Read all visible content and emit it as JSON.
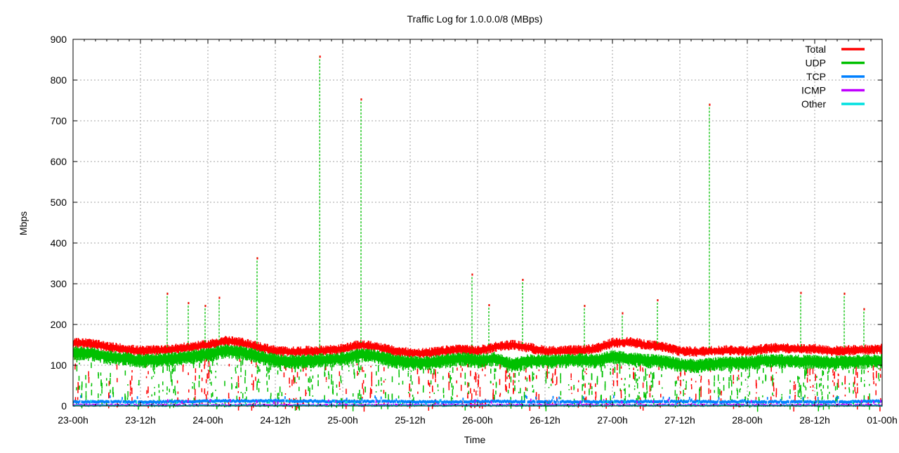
{
  "chart_data": {
    "type": "scatter",
    "title": "Traffic Log for 1.0.0.0/8 (MBps)",
    "xlabel": "Time",
    "ylabel": "Mbps",
    "ylim": [
      0,
      900
    ],
    "yticks": [
      "0",
      "100",
      "200",
      "300",
      "400",
      "500",
      "600",
      "700",
      "800",
      "900"
    ],
    "xlim_hours": [
      0,
      144
    ],
    "xticks": [
      "23-00h",
      "23-12h",
      "24-00h",
      "24-12h",
      "25-00h",
      "25-12h",
      "26-00h",
      "26-12h",
      "27-00h",
      "27-12h",
      "28-00h",
      "28-12h",
      "01-00h"
    ],
    "grid": true,
    "legend_position": "top-right",
    "x_hours": [
      0,
      3,
      6,
      9,
      12,
      15,
      18,
      21,
      24,
      27,
      30,
      33,
      36,
      39,
      42,
      45,
      48,
      51,
      54,
      57,
      60,
      63,
      66,
      69,
      72,
      75,
      78,
      81,
      84,
      87,
      90,
      93,
      96,
      99,
      102,
      105,
      108,
      111,
      114,
      117,
      120,
      123,
      126,
      129,
      132,
      135,
      138,
      141,
      144
    ],
    "series": [
      {
        "name": "Total",
        "color": "#ff0000",
        "values": [
          160,
          158,
          150,
          145,
          140,
          142,
          145,
          150,
          155,
          165,
          160,
          150,
          140,
          138,
          140,
          142,
          145,
          155,
          150,
          140,
          135,
          135,
          140,
          145,
          140,
          150,
          155,
          148,
          140,
          140,
          142,
          145,
          160,
          162,
          155,
          150,
          140,
          138,
          140,
          142,
          140,
          145,
          148,
          145,
          145,
          140,
          142,
          143,
          145
        ]
      },
      {
        "name": "UDP",
        "color": "#00c000",
        "values": [
          140,
          138,
          130,
          125,
          120,
          122,
          125,
          130,
          135,
          145,
          140,
          130,
          120,
          118,
          120,
          122,
          125,
          135,
          130,
          120,
          115,
          115,
          120,
          125,
          120,
          125,
          110,
          120,
          118,
          120,
          122,
          120,
          130,
          125,
          120,
          118,
          110,
          108,
          112,
          115,
          115,
          120,
          120,
          118,
          118,
          115,
          118,
          118,
          120
        ]
      },
      {
        "name": "TCP",
        "color": "#0080ff",
        "values": [
          12,
          12,
          12,
          12,
          12,
          12,
          13,
          13,
          14,
          14,
          14,
          14,
          15,
          14,
          14,
          13,
          13,
          13,
          13,
          13,
          12,
          12,
          12,
          12,
          13,
          13,
          13,
          12,
          12,
          12,
          12,
          12,
          12,
          13,
          13,
          13,
          13,
          13,
          12,
          12,
          12,
          12,
          12,
          12,
          12,
          12,
          12,
          13,
          14
        ]
      },
      {
        "name": "ICMP",
        "color": "#c000ff",
        "values": [
          3,
          3,
          3,
          3,
          3,
          3,
          3,
          3,
          3,
          3,
          3,
          3,
          3,
          3,
          3,
          3,
          3,
          3,
          3,
          3,
          3,
          3,
          3,
          3,
          3,
          3,
          3,
          3,
          3,
          3,
          3,
          3,
          3,
          3,
          3,
          3,
          3,
          3,
          3,
          3,
          3,
          3,
          3,
          3,
          3,
          3,
          3,
          3,
          3
        ]
      },
      {
        "name": "Other",
        "color": "#00e0e0",
        "values": [
          1,
          1,
          1,
          1,
          1,
          1,
          1,
          1,
          1,
          1,
          1,
          1,
          1,
          1,
          1,
          1,
          1,
          1,
          1,
          1,
          1,
          1,
          1,
          1,
          1,
          1,
          1,
          1,
          1,
          1,
          1,
          1,
          1,
          1,
          1,
          1,
          1,
          1,
          1,
          1,
          1,
          1,
          1,
          1,
          1,
          1,
          1,
          1,
          1
        ]
      }
    ],
    "spikes": [
      {
        "hour": 16.75,
        "max": 278
      },
      {
        "hour": 20.5,
        "max": 255
      },
      {
        "hour": 23.5,
        "max": 248
      },
      {
        "hour": 26,
        "max": 268
      },
      {
        "hour": 32.75,
        "max": 365
      },
      {
        "hour": 43.9,
        "max": 860
      },
      {
        "hour": 51.25,
        "max": 755
      },
      {
        "hour": 71,
        "max": 325
      },
      {
        "hour": 74,
        "max": 250
      },
      {
        "hour": 80,
        "max": 312
      },
      {
        "hour": 91,
        "max": 248
      },
      {
        "hour": 97.75,
        "max": 230
      },
      {
        "hour": 104,
        "max": 262
      },
      {
        "hour": 113.25,
        "max": 742
      },
      {
        "hour": 129.5,
        "max": 280
      },
      {
        "hour": 137.25,
        "max": 278
      },
      {
        "hour": 140.75,
        "max": 240
      }
    ]
  }
}
